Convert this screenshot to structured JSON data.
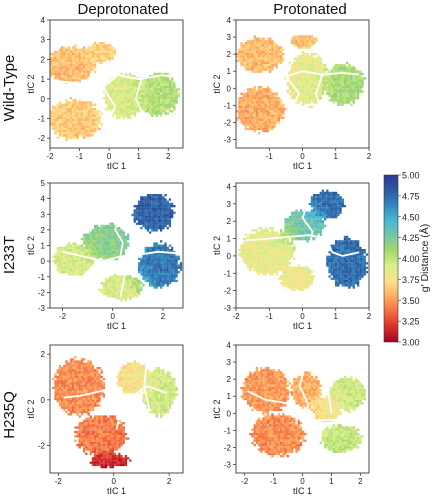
{
  "figure": {
    "column_titles": [
      "Deprotonated",
      "Protonated"
    ],
    "row_titles": [
      "Wild-Type",
      "I233T",
      "H235Q"
    ],
    "xlabel": "tIC 1",
    "ylabel": "tIC 2"
  },
  "colorbar": {
    "label": "g′ Distance (Å)",
    "min": 3.0,
    "max": 5.0,
    "ticks": [
      "5.00",
      "4.75",
      "4.50",
      "4.25",
      "4.00",
      "3.75",
      "3.50",
      "3.25",
      "3.00"
    ],
    "colors": [
      "#a50026",
      "#d73027",
      "#f46d43",
      "#fdae61",
      "#fee08b",
      "#d9ef8b",
      "#a6d96a",
      "#74c7a4",
      "#4ab7d6",
      "#3288bd",
      "#2c5aa0",
      "#313695"
    ]
  },
  "chart_data": [
    {
      "type": "heatmap",
      "name": "Wild-Type / Deprotonated",
      "xlim": [
        -2,
        2.5
      ],
      "ylim": [
        -2.5,
        4
      ],
      "xticks": [
        "-2",
        "-1",
        "0",
        "1",
        "2"
      ],
      "yticks": [
        "-2",
        "-1",
        "0",
        "1",
        "2",
        "3",
        "4"
      ],
      "blobs": [
        {
          "cx": -1.3,
          "cy": 1.8,
          "rx": 0.8,
          "ry": 0.9,
          "v": 3.6
        },
        {
          "cx": -1.2,
          "cy": -1.0,
          "rx": 0.9,
          "ry": 1.0,
          "v": 3.65
        },
        {
          "cx": 0.5,
          "cy": 0.2,
          "rx": 0.7,
          "ry": 1.1,
          "v": 3.9
        },
        {
          "cx": 1.6,
          "cy": 0.3,
          "rx": 0.7,
          "ry": 1.1,
          "v": 4.05
        },
        {
          "cx": -0.3,
          "cy": 2.4,
          "rx": 0.5,
          "ry": 0.5,
          "v": 3.7
        }
      ],
      "boundaries": [
        [
          [
            -1.8,
            0.9
          ],
          [
            -1.0,
            0.8
          ],
          [
            -0.2,
            0.6
          ],
          [
            0.3,
            1.2
          ],
          [
            1.0,
            1.0
          ],
          [
            1.8,
            1.2
          ],
          [
            2.3,
            1.1
          ]
        ],
        [
          [
            0.1,
            2.0
          ],
          [
            -0.2,
            0.6
          ],
          [
            0.2,
            -0.4
          ],
          [
            -0.1,
            -1.4
          ],
          [
            0.3,
            -2.3
          ]
        ],
        [
          [
            1.1,
            1.0
          ],
          [
            0.9,
            0.0
          ],
          [
            1.2,
            -0.9
          ],
          [
            1.0,
            -1.8
          ]
        ]
      ]
    },
    {
      "type": "heatmap",
      "name": "Wild-Type / Protonated",
      "xlim": [
        -2,
        2
      ],
      "ylim": [
        -3.5,
        4
      ],
      "xticks": [
        "-1",
        "0",
        "1",
        "2"
      ],
      "yticks": [
        "-3",
        "-2",
        "-1",
        "0",
        "1",
        "2",
        "3",
        "4"
      ],
      "blobs": [
        {
          "cx": -1.3,
          "cy": 2.0,
          "rx": 0.7,
          "ry": 1.0,
          "v": 3.6
        },
        {
          "cx": -1.3,
          "cy": -1.2,
          "rx": 0.7,
          "ry": 1.3,
          "v": 3.55
        },
        {
          "cx": 0.1,
          "cy": 0.6,
          "rx": 0.6,
          "ry": 1.5,
          "v": 3.85
        },
        {
          "cx": 1.2,
          "cy": 0.3,
          "rx": 0.6,
          "ry": 1.2,
          "v": 4.1
        },
        {
          "cx": 0.0,
          "cy": 2.8,
          "rx": 0.4,
          "ry": 0.4,
          "v": 3.6
        }
      ],
      "boundaries": [
        [
          [
            -1.8,
            0.7
          ],
          [
            -1.1,
            0.6
          ],
          [
            -0.5,
            0.7
          ],
          [
            0.0,
            1.0
          ],
          [
            0.6,
            0.8
          ],
          [
            1.2,
            0.9
          ],
          [
            1.7,
            0.8
          ]
        ],
        [
          [
            -0.2,
            2.2
          ],
          [
            -0.5,
            0.7
          ],
          [
            -0.1,
            -0.3
          ],
          [
            -0.4,
            -1.4
          ],
          [
            -0.2,
            -2.6
          ]
        ],
        [
          [
            0.6,
            0.8
          ],
          [
            0.4,
            -0.3
          ],
          [
            0.6,
            -1.4
          ],
          [
            0.5,
            -2.2
          ]
        ]
      ]
    },
    {
      "type": "heatmap",
      "name": "I233T / Deprotonated",
      "xlim": [
        -2.5,
        2.8
      ],
      "ylim": [
        -3,
        5
      ],
      "xticks": [
        "-2",
        "0",
        "2"
      ],
      "yticks": [
        "-3",
        "-2",
        "-1",
        "0",
        "1",
        "2",
        "3",
        "4",
        "5"
      ],
      "blobs": [
        {
          "cx": -1.6,
          "cy": 0.2,
          "rx": 0.8,
          "ry": 1.0,
          "v": 3.9
        },
        {
          "cx": -0.3,
          "cy": 1.3,
          "rx": 0.9,
          "ry": 1.1,
          "v": 4.2
        },
        {
          "cx": 0.3,
          "cy": -1.6,
          "rx": 0.8,
          "ry": 0.8,
          "v": 3.9
        },
        {
          "cx": 1.6,
          "cy": 3.2,
          "rx": 0.8,
          "ry": 1.2,
          "v": 4.8
        },
        {
          "cx": 1.8,
          "cy": -0.2,
          "rx": 0.8,
          "ry": 1.4,
          "v": 4.7
        }
      ],
      "boundaries": [
        [
          [
            -2.0,
            0.6
          ],
          [
            -1.2,
            0.3
          ],
          [
            -0.4,
            0.0
          ],
          [
            0.3,
            0.3
          ],
          [
            1.0,
            0.4
          ],
          [
            1.8,
            0.6
          ],
          [
            2.6,
            0.5
          ]
        ],
        [
          [
            0.3,
            3.2
          ],
          [
            0.1,
            2.0
          ],
          [
            0.4,
            1.2
          ],
          [
            0.3,
            0.3
          ],
          [
            0.5,
            -0.8
          ],
          [
            0.3,
            -2.3
          ]
        ],
        [
          [
            1.0,
            2.3
          ],
          [
            1.2,
            1.3
          ],
          [
            1.0,
            0.4
          ]
        ]
      ]
    },
    {
      "type": "heatmap",
      "name": "I233T / Protonated",
      "xlim": [
        -2,
        2
      ],
      "ylim": [
        -3,
        4.2
      ],
      "xticks": [
        "-2",
        "-1",
        "0",
        "1",
        "2"
      ],
      "yticks": [
        "-3",
        "-2",
        "-1",
        "0",
        "1",
        "2",
        "3",
        "4"
      ],
      "blobs": [
        {
          "cx": -1.1,
          "cy": 0.3,
          "rx": 0.8,
          "ry": 1.3,
          "v": 3.85
        },
        {
          "cx": 0.0,
          "cy": 1.8,
          "rx": 0.6,
          "ry": 0.9,
          "v": 4.3
        },
        {
          "cx": 0.7,
          "cy": 3.0,
          "rx": 0.5,
          "ry": 0.8,
          "v": 4.75
        },
        {
          "cx": 1.3,
          "cy": -0.3,
          "rx": 0.6,
          "ry": 1.4,
          "v": 4.75
        },
        {
          "cx": -0.2,
          "cy": -1.2,
          "rx": 0.5,
          "ry": 0.7,
          "v": 3.8
        }
      ],
      "boundaries": [
        [
          [
            -1.7,
            0.9
          ],
          [
            -1.0,
            1.0
          ],
          [
            -0.4,
            1.1
          ],
          [
            0.2,
            1.2
          ],
          [
            0.7,
            1.0
          ]
        ],
        [
          [
            0.2,
            3.2
          ],
          [
            0.0,
            2.2
          ],
          [
            0.3,
            1.4
          ],
          [
            0.2,
            0.4
          ],
          [
            0.5,
            -0.6
          ],
          [
            0.3,
            -1.8
          ]
        ],
        [
          [
            0.7,
            1.0
          ],
          [
            0.9,
            0.2
          ],
          [
            1.2,
            0.0
          ],
          [
            1.7,
            0.2
          ]
        ]
      ]
    },
    {
      "type": "heatmap",
      "name": "H235Q / Deprotonated",
      "xlim": [
        -2.3,
        2.5
      ],
      "ylim": [
        -3.2,
        2.4
      ],
      "xticks": [
        "-2",
        "0",
        "2"
      ],
      "yticks": [
        "-2",
        "0",
        "2"
      ],
      "blobs": [
        {
          "cx": -1.3,
          "cy": 0.6,
          "rx": 0.9,
          "ry": 1.2,
          "v": 3.45
        },
        {
          "cx": -0.5,
          "cy": -1.5,
          "rx": 0.9,
          "ry": 0.9,
          "v": 3.4
        },
        {
          "cx": -0.2,
          "cy": -2.6,
          "rx": 0.7,
          "ry": 0.3,
          "v": 3.1
        },
        {
          "cx": 0.7,
          "cy": 1.0,
          "rx": 0.6,
          "ry": 0.7,
          "v": 3.75
        },
        {
          "cx": 1.6,
          "cy": 0.4,
          "rx": 0.6,
          "ry": 1.0,
          "v": 3.95
        }
      ],
      "boundaries": [
        [
          [
            -1.8,
            0.1
          ],
          [
            -1.1,
            0.2
          ],
          [
            -0.4,
            0.4
          ],
          [
            0.0,
            0.0
          ],
          [
            0.6,
            0.1
          ],
          [
            1.2,
            0.6
          ],
          [
            1.9,
            0.3
          ]
        ],
        [
          [
            0.0,
            1.6
          ],
          [
            -0.1,
            0.6
          ],
          [
            0.3,
            -0.2
          ],
          [
            0.1,
            -1.3
          ]
        ],
        [
          [
            1.2,
            1.8
          ],
          [
            1.1,
            0.6
          ],
          [
            1.3,
            -0.5
          ]
        ]
      ]
    },
    {
      "type": "heatmap",
      "name": "H235Q / Protonated",
      "xlim": [
        -2.3,
        2.3
      ],
      "ylim": [
        -3.5,
        4
      ],
      "xticks": [
        "-2",
        "-1",
        "0",
        "1",
        "2"
      ],
      "yticks": [
        "-3",
        "-2",
        "-1",
        "0",
        "1",
        "2",
        "3",
        "4"
      ],
      "blobs": [
        {
          "cx": -1.3,
          "cy": 1.4,
          "rx": 0.8,
          "ry": 1.3,
          "v": 3.5
        },
        {
          "cx": -0.9,
          "cy": -1.2,
          "rx": 0.9,
          "ry": 1.2,
          "v": 3.45
        },
        {
          "cx": 0.1,
          "cy": 1.4,
          "rx": 0.5,
          "ry": 1.0,
          "v": 3.55
        },
        {
          "cx": 0.8,
          "cy": 0.3,
          "rx": 0.5,
          "ry": 0.7,
          "v": 3.75
        },
        {
          "cx": 1.5,
          "cy": 1.2,
          "rx": 0.6,
          "ry": 1.0,
          "v": 3.95
        },
        {
          "cx": 1.3,
          "cy": -1.4,
          "rx": 0.7,
          "ry": 0.8,
          "v": 4.0
        }
      ],
      "boundaries": [
        [
          [
            -1.9,
            1.3
          ],
          [
            -1.3,
            0.8
          ],
          [
            -0.6,
            0.6
          ],
          [
            -0.1,
            0.2
          ],
          [
            0.4,
            -0.4
          ],
          [
            1.0,
            -0.4
          ],
          [
            1.7,
            -0.3
          ]
        ],
        [
          [
            0.1,
            2.8
          ],
          [
            -0.1,
            1.6
          ],
          [
            0.2,
            0.5
          ],
          [
            0.1,
            -0.6
          ],
          [
            0.3,
            -2.0
          ]
        ],
        [
          [
            1.0,
            2.5
          ],
          [
            0.9,
            1.2
          ],
          [
            1.0,
            0.0
          ]
        ]
      ]
    }
  ]
}
